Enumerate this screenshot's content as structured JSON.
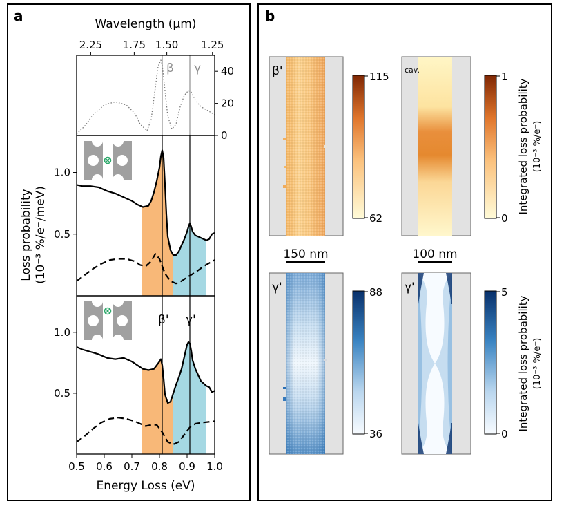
{
  "panels": {
    "a": {
      "letter": "a",
      "top_axis_label": "Wavelength (µm)",
      "top_axis_ticks": [
        "2.25",
        "1.75",
        "1.50",
        "1.25"
      ],
      "right_axis_ticks": [
        "0",
        "20",
        "40"
      ],
      "bottom_axis_label": "Energy Loss (eV)",
      "left_axis_label_line1": "Loss probability",
      "left_axis_label_line2": "(10⁻³ %/e⁻/meV)"
    },
    "b": {
      "letter": "b",
      "scale_bar_left": "150 nm",
      "scale_bar_right": "100 nm",
      "maps": [
        {
          "label": "β'",
          "colorbar_max": "115",
          "colorbar_min": "62"
        },
        {
          "label": "cav.",
          "colorbar_max": "1",
          "colorbar_min": "0"
        },
        {
          "label": "γ'",
          "colorbar_max": "88",
          "colorbar_min": "36"
        },
        {
          "label": "γ'",
          "colorbar_max": "5",
          "colorbar_min": "0"
        }
      ],
      "colorbar_label_line1": "Integrated loss probability",
      "colorbar_label_line2": "(10⁻³ %/e⁻)"
    }
  },
  "colors": {
    "orange_band": "#f8b878",
    "blue_band": "#a5d8e3",
    "gray_marker": "#909090",
    "green_marker": "#2ca86a",
    "orange_dark": "#7f2704",
    "orange_light": "#fff5c0",
    "blue_dark": "#08306b",
    "blue_light": "#f7fbff",
    "sidebar_gray": "#e2e2e2"
  },
  "chart_data": [
    {
      "type": "line",
      "title": "",
      "subplot": "top",
      "xlabel": "Energy Loss (eV)",
      "secondary_xlabel": "Wavelength (µm)",
      "secondary_xticks": [
        "2.25",
        "1.75",
        "1.50",
        "1.25"
      ],
      "ylabel_right": "",
      "xlim": [
        0.5,
        1.0
      ],
      "ylim": [
        0,
        50
      ],
      "yticks": [
        0,
        20,
        40
      ],
      "series": [
        {
          "name": "optical spectrum",
          "style": "dotted",
          "x": [
            0.5,
            0.53,
            0.56,
            0.6,
            0.64,
            0.68,
            0.71,
            0.73,
            0.755,
            0.77,
            0.785,
            0.795,
            0.805,
            0.81,
            0.82,
            0.83,
            0.845,
            0.86,
            0.875,
            0.89,
            0.905,
            0.915,
            0.93,
            0.95,
            0.97,
            0.99,
            1.0
          ],
          "y": [
            1,
            6,
            13,
            19,
            21,
            19,
            14,
            7,
            3,
            10,
            30,
            43,
            47,
            44,
            28,
            12,
            4,
            7,
            18,
            25,
            28,
            27,
            22,
            18,
            16,
            14,
            13
          ]
        }
      ],
      "annotations": [
        {
          "text": "β",
          "x": 0.81
        },
        {
          "text": "γ",
          "x": 0.91
        }
      ]
    },
    {
      "type": "line",
      "title": "",
      "subplot": "middle",
      "xlim": [
        0.5,
        1.0
      ],
      "ylim": [
        0,
        1.3
      ],
      "yticks": [
        0.5,
        1.0
      ],
      "shaded_bands": [
        {
          "from": 0.735,
          "to": 0.85,
          "color": "orange"
        },
        {
          "from": 0.85,
          "to": 0.97,
          "color": "blue"
        }
      ],
      "vlines": [
        0.81,
        0.91
      ],
      "series": [
        {
          "name": "EELS solid",
          "style": "solid",
          "x": [
            0.5,
            0.52,
            0.55,
            0.58,
            0.61,
            0.64,
            0.67,
            0.7,
            0.72,
            0.74,
            0.76,
            0.77,
            0.78,
            0.79,
            0.8,
            0.805,
            0.81,
            0.815,
            0.82,
            0.825,
            0.83,
            0.84,
            0.85,
            0.86,
            0.87,
            0.88,
            0.89,
            0.9,
            0.905,
            0.91,
            0.915,
            0.92,
            0.93,
            0.94,
            0.95,
            0.96,
            0.97,
            0.98,
            0.99,
            1.0
          ],
          "y": [
            0.9,
            0.89,
            0.89,
            0.88,
            0.85,
            0.83,
            0.8,
            0.77,
            0.74,
            0.72,
            0.73,
            0.77,
            0.84,
            0.93,
            1.04,
            1.13,
            1.18,
            1.12,
            0.9,
            0.66,
            0.48,
            0.37,
            0.33,
            0.33,
            0.36,
            0.41,
            0.46,
            0.52,
            0.56,
            0.59,
            0.56,
            0.52,
            0.49,
            0.48,
            0.47,
            0.46,
            0.45,
            0.46,
            0.5,
            0.51
          ]
        },
        {
          "name": "EELS dashed",
          "style": "dashed",
          "x": [
            0.5,
            0.53,
            0.56,
            0.59,
            0.62,
            0.65,
            0.68,
            0.71,
            0.73,
            0.75,
            0.77,
            0.785,
            0.8,
            0.82,
            0.84,
            0.86,
            0.88,
            0.9,
            0.93,
            0.96,
            1.0
          ],
          "y": [
            0.12,
            0.17,
            0.22,
            0.26,
            0.29,
            0.3,
            0.3,
            0.28,
            0.25,
            0.24,
            0.28,
            0.34,
            0.3,
            0.18,
            0.12,
            0.1,
            0.12,
            0.15,
            0.19,
            0.24,
            0.29
          ]
        }
      ]
    },
    {
      "type": "line",
      "title": "",
      "subplot": "bottom",
      "xlim": [
        0.5,
        1.0
      ],
      "ylim": [
        0,
        1.3
      ],
      "xticks": [
        0.5,
        0.6,
        0.7,
        0.8,
        0.9,
        1.0
      ],
      "yticks": [
        0.5,
        1.0
      ],
      "shaded_bands": [
        {
          "from": 0.735,
          "to": 0.85,
          "color": "orange"
        },
        {
          "from": 0.85,
          "to": 0.97,
          "color": "blue"
        }
      ],
      "vlines": [
        0.81,
        0.91
      ],
      "annotations": [
        {
          "text": "β'",
          "x": 0.81
        },
        {
          "text": "γ'",
          "x": 0.91
        }
      ],
      "series": [
        {
          "name": "EELS solid",
          "style": "solid",
          "x": [
            0.5,
            0.52,
            0.55,
            0.58,
            0.61,
            0.64,
            0.67,
            0.7,
            0.72,
            0.74,
            0.76,
            0.78,
            0.79,
            0.8,
            0.805,
            0.81,
            0.815,
            0.82,
            0.83,
            0.84,
            0.85,
            0.86,
            0.87,
            0.88,
            0.89,
            0.9,
            0.905,
            0.91,
            0.915,
            0.92,
            0.93,
            0.94,
            0.95,
            0.96,
            0.97,
            0.98,
            0.99,
            1.0
          ],
          "y": [
            0.88,
            0.86,
            0.84,
            0.82,
            0.79,
            0.78,
            0.79,
            0.76,
            0.73,
            0.7,
            0.69,
            0.7,
            0.73,
            0.76,
            0.78,
            0.73,
            0.62,
            0.49,
            0.42,
            0.43,
            0.5,
            0.57,
            0.63,
            0.7,
            0.8,
            0.9,
            0.92,
            0.91,
            0.85,
            0.77,
            0.7,
            0.65,
            0.6,
            0.58,
            0.56,
            0.55,
            0.51,
            0.52
          ]
        },
        {
          "name": "EELS dashed",
          "style": "dashed",
          "x": [
            0.5,
            0.53,
            0.56,
            0.59,
            0.62,
            0.65,
            0.68,
            0.71,
            0.73,
            0.75,
            0.77,
            0.79,
            0.81,
            0.83,
            0.85,
            0.87,
            0.89,
            0.91,
            0.93,
            0.96,
            1.0
          ],
          "y": [
            0.1,
            0.15,
            0.21,
            0.26,
            0.29,
            0.3,
            0.29,
            0.27,
            0.25,
            0.23,
            0.24,
            0.24,
            0.18,
            0.1,
            0.08,
            0.1,
            0.16,
            0.22,
            0.25,
            0.26,
            0.27
          ]
        }
      ]
    }
  ]
}
